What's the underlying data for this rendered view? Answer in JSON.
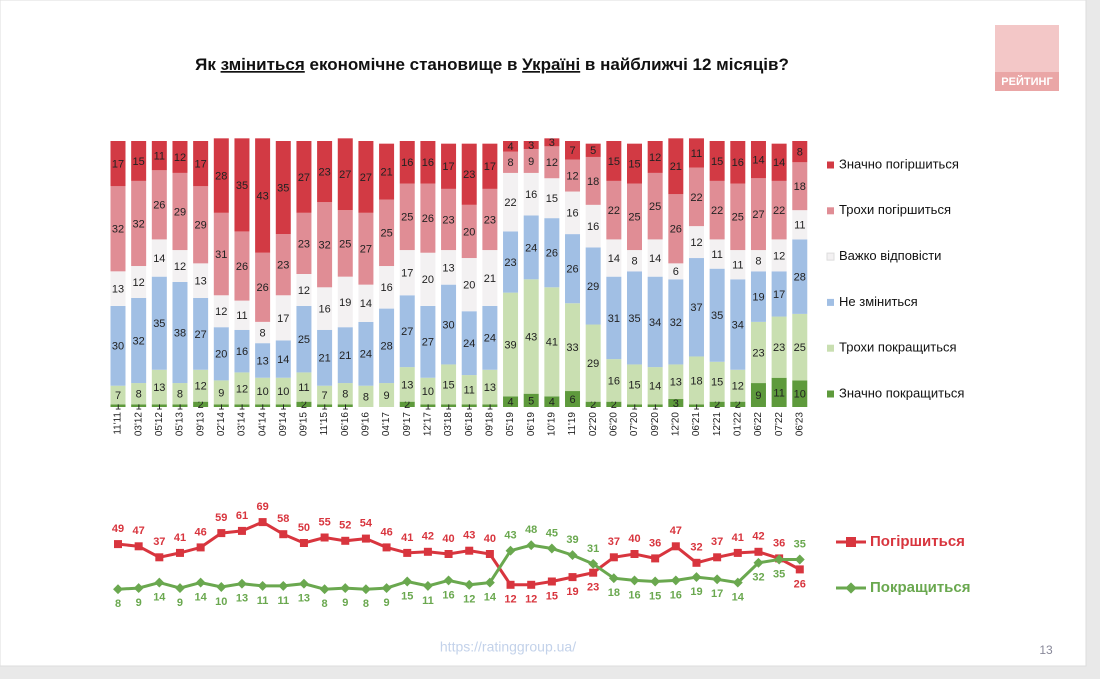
{
  "header": {
    "title_parts": [
      "Як ",
      "зміниться",
      " економічне становище в ",
      "Україні",
      " в найближчі 12 місяців?"
    ],
    "logo": "РЕЙТИНГ"
  },
  "footer": {
    "url": "https://ratinggroup.ua/",
    "page": "13"
  },
  "chart_data": [
    {
      "type": "stacked_bar",
      "ylim": [
        0,
        100
      ],
      "categories": [
        "11'11",
        "03'12",
        "05'12",
        "05'13",
        "09'13",
        "02'14",
        "03'14",
        "04'14",
        "09'14",
        "09'15",
        "11'15",
        "06'16",
        "09'16",
        "04'17",
        "09'17",
        "12'17",
        "03'18",
        "06'18",
        "09'18",
        "05'19",
        "06'19",
        "10'19",
        "11'19",
        "02'20",
        "06'20",
        "07'20",
        "09'20",
        "12'20",
        "06'21",
        "12'21",
        "01'22",
        "06'22",
        "07'22",
        "06'23"
      ],
      "series": [
        {
          "name": "Значно покращиться",
          "color": "#5e9a3c",
          "values": [
            1,
            1,
            1,
            1,
            2,
            1,
            1,
            1,
            1,
            2,
            1,
            1,
            null,
            null,
            2,
            1,
            1,
            1,
            1,
            4,
            5,
            4,
            6,
            2,
            2,
            1,
            1,
            3,
            1,
            2,
            2,
            9,
            11,
            10
          ]
        },
        {
          "name": "Трохи покращиться",
          "color": "#c9dfb1",
          "values": [
            7,
            8,
            13,
            8,
            12,
            9,
            12,
            10,
            10,
            11,
            7,
            8,
            8,
            9,
            13,
            10,
            15,
            11,
            13,
            39,
            43,
            41,
            33,
            29,
            16,
            15,
            14,
            13,
            18,
            15,
            12,
            23,
            23,
            25
          ]
        },
        {
          "name": "Не зміниться",
          "color": "#a1bfe4",
          "values": [
            30,
            32,
            35,
            38,
            27,
            20,
            16,
            13,
            14,
            25,
            21,
            21,
            24,
            28,
            27,
            27,
            30,
            24,
            24,
            23,
            24,
            26,
            26,
            29,
            31,
            35,
            34,
            32,
            37,
            35,
            34,
            19,
            17,
            28
          ]
        },
        {
          "name": "Важко відповісти",
          "color": "#f3f1f2",
          "values": [
            13,
            12,
            14,
            12,
            13,
            12,
            11,
            8,
            17,
            12,
            16,
            19,
            14,
            16,
            17,
            20,
            13,
            20,
            21,
            22,
            16,
            15,
            16,
            16,
            14,
            8,
            14,
            6,
            12,
            11,
            11,
            8,
            12,
            11
          ]
        },
        {
          "name": "Трохи погіршиться",
          "color": "#e08d95",
          "values": [
            32,
            32,
            26,
            29,
            29,
            31,
            26,
            26,
            23,
            23,
            32,
            25,
            27,
            25,
            25,
            26,
            23,
            20,
            23,
            8,
            9,
            12,
            12,
            18,
            22,
            25,
            25,
            26,
            22,
            22,
            25,
            27,
            22,
            18
          ]
        },
        {
          "name": "Значно погіршиться",
          "color": "#d23a44",
          "values": [
            17,
            15,
            11,
            12,
            17,
            28,
            35,
            43,
            35,
            27,
            23,
            27,
            27,
            21,
            16,
            16,
            17,
            23,
            17,
            4,
            3,
            3,
            7,
            5,
            15,
            15,
            12,
            21,
            11,
            15,
            16,
            14,
            14,
            8
          ]
        }
      ]
    },
    {
      "type": "line",
      "series": [
        {
          "name": "Погіршиться",
          "color": "#d8353e",
          "values": [
            49,
            47,
            37,
            41,
            46,
            59,
            61,
            69,
            58,
            50,
            55,
            52,
            54,
            46,
            41,
            42,
            40,
            43,
            40,
            12,
            12,
            15,
            19,
            23,
            37,
            40,
            36,
            47,
            32,
            37,
            41,
            42,
            36,
            26
          ]
        },
        {
          "name": "Покращиться",
          "color": "#6aa84f",
          "values": [
            8,
            9,
            14,
            9,
            14,
            10,
            13,
            11,
            11,
            13,
            8,
            9,
            8,
            9,
            15,
            11,
            16,
            12,
            14,
            43,
            48,
            45,
            39,
            31,
            18,
            16,
            15,
            16,
            19,
            17,
            14,
            32,
            35,
            35
          ]
        }
      ]
    }
  ]
}
